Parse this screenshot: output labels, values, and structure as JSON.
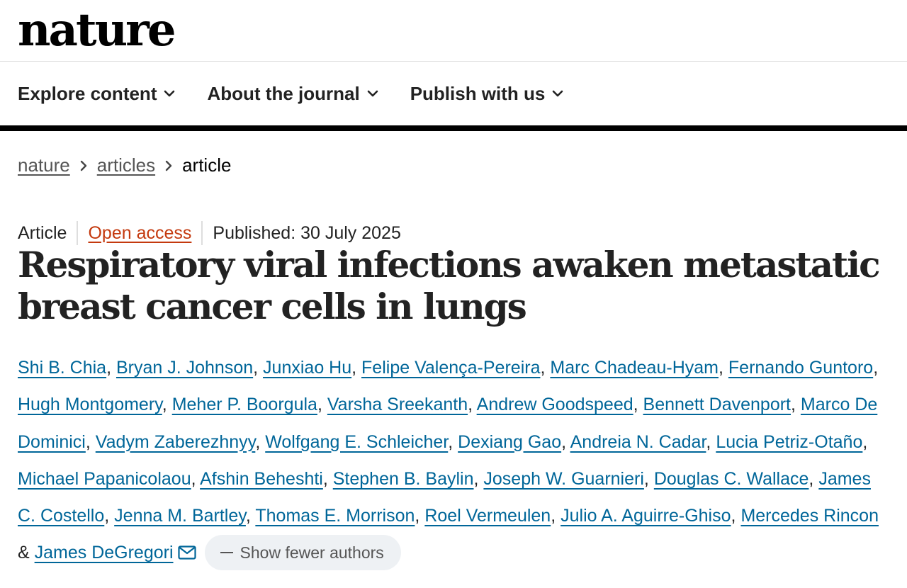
{
  "site": {
    "logo": "nature"
  },
  "nav": {
    "items": [
      {
        "label": "Explore content"
      },
      {
        "label": "About the journal"
      },
      {
        "label": "Publish with us"
      }
    ]
  },
  "breadcrumb": {
    "items": [
      "nature",
      "articles"
    ],
    "current": "article"
  },
  "article": {
    "type": "Article",
    "access": "Open access",
    "published": "Published: 30 July 2025",
    "title": "Respiratory viral infections awaken metastatic breast cancer cells in lungs"
  },
  "authors": [
    "Shi B. Chia",
    "Bryan J. Johnson",
    "Junxiao Hu",
    "Felipe Valença-Pereira",
    "Marc Chadeau-Hyam",
    "Fernando Guntoro",
    "Hugh Montgomery",
    "Meher P. Boorgula",
    "Varsha Sreekanth",
    "Andrew Goodspeed",
    "Bennett Davenport",
    "Marco De Dominici",
    "Vadym Zaberezhnyy",
    "Wolfgang E. Schleicher",
    "Dexiang Gao",
    "Andreia N. Cadar",
    "Lucia Petriz-Otaño",
    "Michael Papanicolaou",
    "Afshin Beheshti",
    "Stephen B. Baylin",
    "Joseph W. Guarnieri",
    "Douglas C. Wallace",
    "James C. Costello",
    "Jenna M. Bartley",
    "Thomas E. Morrison",
    "Roel Vermeulen",
    "Julio A. Aguirre-Ghiso",
    "Mercedes Rincon",
    "James DeGregori"
  ],
  "author_controls": {
    "show_fewer_label": "Show fewer authors",
    "last_separator": "&"
  },
  "icons": {
    "nav_chevron": "chevron-down-icon",
    "breadcrumb_sep": "chevron-right-icon",
    "mail": "mail-icon"
  },
  "colors": {
    "link": "#006699",
    "open_access": "#c4390e",
    "text": "#222222"
  }
}
